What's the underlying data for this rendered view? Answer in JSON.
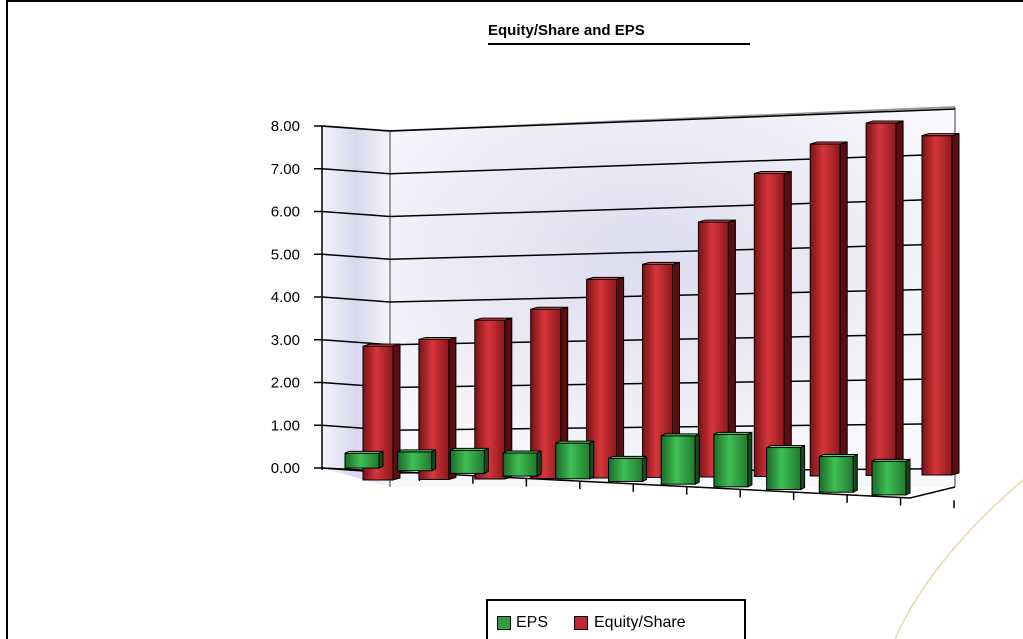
{
  "chart_data": {
    "type": "bar",
    "title": "Equity/Share and EPS",
    "xlabel": "",
    "ylabel": "",
    "ylim": [
      0,
      8
    ],
    "yticks": [
      "0.00",
      "1.00",
      "2.00",
      "3.00",
      "4.00",
      "5.00",
      "6.00",
      "7.00",
      "8.00"
    ],
    "categories": [
      "",
      "",
      "",
      "",
      "",
      "",
      "",
      "",
      "",
      "",
      ""
    ],
    "series": [
      {
        "name": "EPS",
        "color": "#2e9e3e",
        "values": [
          0.35,
          0.45,
          0.55,
          0.55,
          0.85,
          0.55,
          1.15,
          1.25,
          1.0,
          0.85,
          0.8
        ]
      },
      {
        "name": "Equity/Share",
        "color": "#c0282d",
        "values": [
          3.15,
          3.3,
          3.75,
          4.0,
          4.7,
          5.05,
          6.05,
          7.2,
          7.9,
          8.4,
          8.1
        ]
      }
    ],
    "grid": true,
    "legend_position": "bottom"
  },
  "colors": {
    "eps": "#2e9e3e",
    "equity": "#c0282d",
    "accent": "#e8d8a8"
  }
}
